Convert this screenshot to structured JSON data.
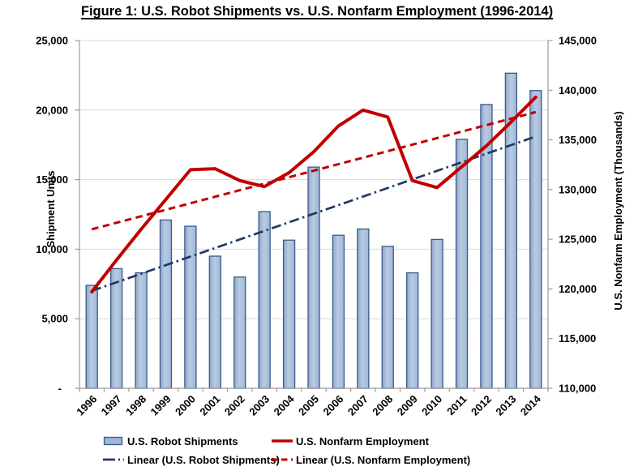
{
  "title": "Figure 1: U.S. Robot Shipments vs. U.S. Nonfarm Employment (1996-2014)",
  "chart_data": {
    "type": "bar",
    "subtype": "combo-bar-line-dual-axis",
    "categories": [
      "1996",
      "1997",
      "1998",
      "1999",
      "2000",
      "2001",
      "2002",
      "2003",
      "2004",
      "2005",
      "2006",
      "2007",
      "2008",
      "2009",
      "2010",
      "2011",
      "2012",
      "2013",
      "2014"
    ],
    "series": [
      {
        "name": "U.S. Robot Shipments",
        "type": "bar",
        "axis": "left",
        "values": [
          7400,
          8600,
          8300,
          12100,
          11650,
          9500,
          8000,
          12700,
          10650,
          15900,
          11000,
          11450,
          10200,
          8300,
          10700,
          17900,
          20400,
          22650,
          21400
        ]
      },
      {
        "name": "U.S. Nonfarm Employment",
        "type": "line",
        "axis": "right",
        "values": [
          119700,
          122900,
          126000,
          129000,
          132000,
          132100,
          130900,
          130300,
          131700,
          133800,
          136400,
          138000,
          137300,
          130900,
          130200,
          132300,
          134400,
          136800,
          139300
        ]
      },
      {
        "name": "Linear (U.S. Robot Shipments)",
        "type": "linear_trend",
        "axis": "left",
        "start_value": 7000,
        "end_value": 18100
      },
      {
        "name": "Linear (U.S. Nonfarm Employment)",
        "type": "linear_trend",
        "axis": "right",
        "start_value": 126000,
        "end_value": 137800
      }
    ],
    "left_axis": {
      "label": "Shipment Units",
      "min": 0,
      "max": 25000,
      "ticks": [
        {
          "value": 25000,
          "label": "25,000"
        },
        {
          "value": 20000,
          "label": "20,000"
        },
        {
          "value": 15000,
          "label": "15,000"
        },
        {
          "value": 10000,
          "label": "10,000"
        },
        {
          "value": 5000,
          "label": "5,000"
        },
        {
          "value": 0,
          "label": "-"
        }
      ]
    },
    "right_axis": {
      "label": "U.S. Nonfarm Employment (Thousands)",
      "min": 110000,
      "max": 145000,
      "ticks": [
        {
          "value": 145000,
          "label": "145,000"
        },
        {
          "value": 140000,
          "label": "140,000"
        },
        {
          "value": 135000,
          "label": "135,000"
        },
        {
          "value": 130000,
          "label": "130,000"
        },
        {
          "value": 125000,
          "label": "125,000"
        },
        {
          "value": 120000,
          "label": "120,000"
        },
        {
          "value": 115000,
          "label": "115,000"
        },
        {
          "value": 110000,
          "label": "110,000"
        }
      ]
    },
    "grid": "horizontal",
    "legend_position": "bottom",
    "colors": {
      "bar_fill": "#9FB7D7",
      "bar_fill_light": "#B9CBE3",
      "bar_fill_edge": "#8FA7C9",
      "bar_border": "#3A5A89",
      "employment_line": "#C00000",
      "robot_trend": "#1F3864",
      "employment_trend": "#C00000",
      "gridline": "#D9D9D9",
      "axis": "#9B9B9B",
      "text": "#000000"
    },
    "legend": {
      "items": [
        {
          "label": "U.S. Robot Shipments",
          "swatch": "bar"
        },
        {
          "label": "U.S. Nonfarm Employment",
          "swatch": "solid-line"
        },
        {
          "label": "Linear (U.S. Robot Shipments)",
          "swatch": "dash-dot-line"
        },
        {
          "label": "Linear (U.S. Nonfarm Employment)",
          "swatch": "dashed-line"
        }
      ]
    }
  }
}
